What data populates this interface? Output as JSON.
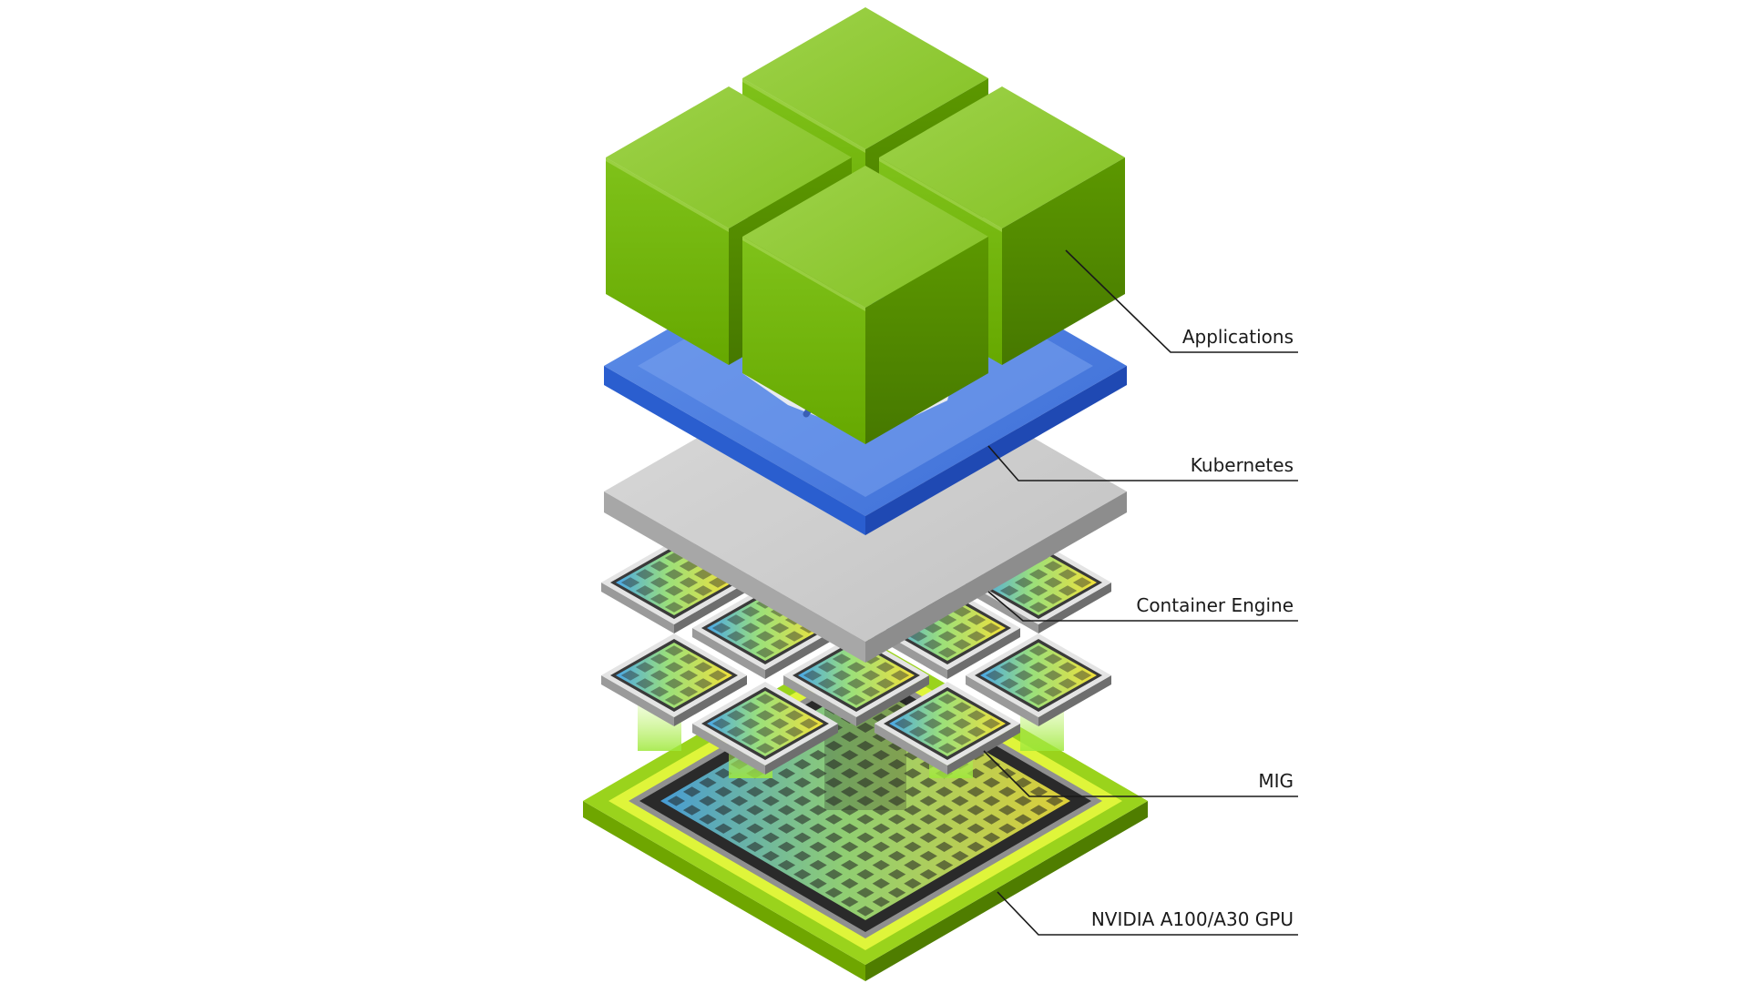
{
  "diagram": {
    "layers": [
      {
        "id": "applications",
        "label": "Applications"
      },
      {
        "id": "kubernetes",
        "label": "Kubernetes"
      },
      {
        "id": "container-engine",
        "label": "Container Engine"
      },
      {
        "id": "mig",
        "label": "MIG"
      },
      {
        "id": "gpu",
        "label": "NVIDIA A100/A30 GPU"
      }
    ],
    "colors": {
      "applications": "#76b900",
      "kubernetes": "#3b6fd6",
      "container_engine": "#c8c8c8",
      "mig_glow": "#b5f25a",
      "gpu_board": "#8ccc1a",
      "gpu_core": "#2a2a2a",
      "leader_line": "#1a1a1a"
    },
    "icons": [
      "kubernetes-helm-wheel-icon"
    ]
  }
}
